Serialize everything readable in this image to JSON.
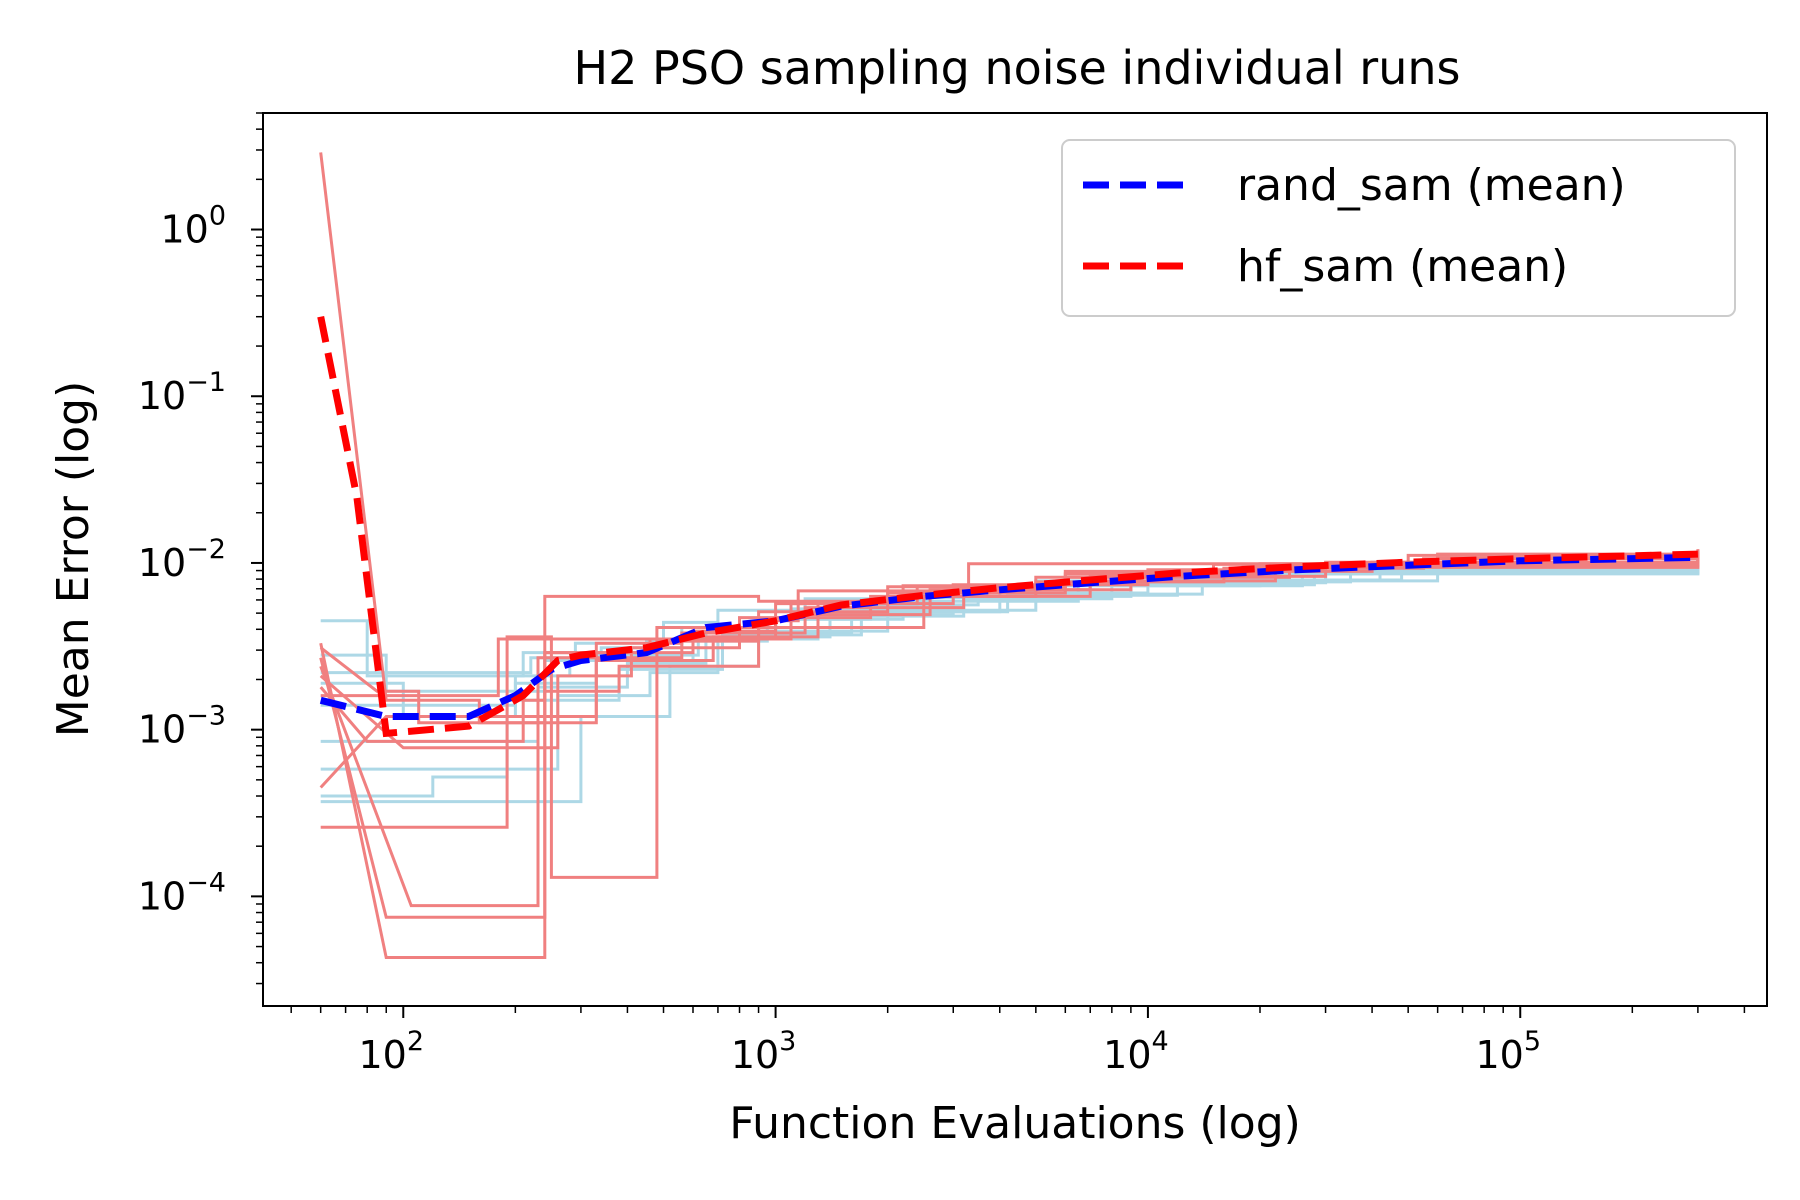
{
  "chart_data": {
    "type": "line",
    "title": "H2 PSO sampling noise individual runs",
    "xlabel": "Function Evaluations (log)",
    "ylabel": "Mean Error (log)",
    "xscale": "log",
    "yscale": "log",
    "xlim": [
      42,
      460000
    ],
    "ylim": [
      2.2e-05,
      5.0
    ],
    "x_ticks": [
      {
        "value": 100,
        "base": "10",
        "exp": "2"
      },
      {
        "value": 1000,
        "base": "10",
        "exp": "3"
      },
      {
        "value": 10000,
        "base": "10",
        "exp": "4"
      },
      {
        "value": 100000,
        "base": "10",
        "exp": "5"
      }
    ],
    "y_ticks": [
      {
        "value": 1,
        "base": "10",
        "exp": "0"
      },
      {
        "value": 0.1,
        "base": "10",
        "exp": "−1"
      },
      {
        "value": 0.01,
        "base": "10",
        "exp": "−2"
      },
      {
        "value": 0.001,
        "base": "10",
        "exp": "−3"
      },
      {
        "value": 0.0001,
        "base": "10",
        "exp": "−4"
      }
    ],
    "legend": {
      "position": "top-right",
      "entries": [
        {
          "label": "rand_sam (mean)",
          "color": "#0000ff"
        },
        {
          "label": "hf_sam (mean)",
          "color": "#ff0000"
        }
      ]
    },
    "colors": {
      "rand_runs": "#add8e6",
      "hf_runs": "#f08080",
      "rand_mean": "#0000ff",
      "hf_mean": "#ff0000"
    },
    "rand_runs": [
      {
        "x": [
          60,
          80,
          160,
          210,
          290,
          500,
          700,
          1200,
          2500,
          5000,
          12000,
          40000,
          300000
        ],
        "y": [
          0.0045,
          0.0021,
          0.0021,
          0.0029,
          0.0033,
          0.0044,
          0.0052,
          0.0061,
          0.0067,
          0.0078,
          0.0086,
          0.0096,
          0.0108
        ]
      },
      {
        "x": [
          60,
          150,
          200,
          280,
          600,
          1000,
          1800,
          3500,
          9000,
          30000,
          300000
        ],
        "y": [
          0.0014,
          0.0014,
          0.0021,
          0.0026,
          0.0036,
          0.0046,
          0.0056,
          0.0066,
          0.0076,
          0.0089,
          0.0102
        ]
      },
      {
        "x": [
          60,
          180,
          230,
          400,
          650,
          1600,
          4000,
          10000,
          42000,
          300000
        ],
        "y": [
          0.00085,
          0.00085,
          0.0018,
          0.0025,
          0.0038,
          0.0051,
          0.0066,
          0.0079,
          0.0093,
          0.0103
        ]
      },
      {
        "x": [
          60,
          140,
          220,
          340,
          560,
          1100,
          2400,
          6000,
          20000,
          300000
        ],
        "y": [
          0.0022,
          0.0022,
          0.0027,
          0.0031,
          0.0041,
          0.0053,
          0.0062,
          0.0073,
          0.0086,
          0.0106
        ]
      },
      {
        "x": [
          60,
          160,
          260,
          460,
          700,
          1400,
          3200,
          8000,
          26000,
          300000
        ],
        "y": [
          0.00058,
          0.00058,
          0.0016,
          0.0022,
          0.0036,
          0.0048,
          0.0061,
          0.0073,
          0.0087,
          0.0104
        ]
      },
      {
        "x": [
          60,
          200,
          300,
          520,
          900,
          2000,
          5000,
          14000,
          48000,
          300000
        ],
        "y": [
          0.00037,
          0.00037,
          0.0012,
          0.0024,
          0.0039,
          0.0052,
          0.0065,
          0.0079,
          0.0094,
          0.0107
        ]
      },
      {
        "x": [
          60,
          100,
          200,
          330,
          620,
          1300,
          3000,
          9000,
          35000,
          300000
        ],
        "y": [
          0.0019,
          0.0012,
          0.0019,
          0.0028,
          0.0035,
          0.0049,
          0.0063,
          0.0077,
          0.0091,
          0.0101
        ]
      },
      {
        "x": [
          60,
          90,
          170,
          240,
          450,
          950,
          2200,
          6500,
          28000,
          300000
        ],
        "y": [
          0.0028,
          0.0017,
          0.0017,
          0.0026,
          0.0034,
          0.0046,
          0.0059,
          0.0074,
          0.0088,
          0.0105
        ]
      },
      {
        "x": [
          60,
          120,
          190,
          380,
          720,
          1700,
          4200,
          12000,
          60000,
          300000
        ],
        "y": [
          0.0004,
          0.00052,
          0.0015,
          0.0023,
          0.0037,
          0.0051,
          0.0064,
          0.0078,
          0.0095,
          0.0104
        ]
      }
    ],
    "hf_runs": [
      {
        "x": [
          60,
          90,
          120,
          160,
          240,
          600,
          1000,
          2000,
          5000,
          10000,
          30000,
          60000,
          300000
        ],
        "y": [
          2.9,
          0.0015,
          0.0015,
          0.0011,
          0.0029,
          0.0039,
          0.0057,
          0.0072,
          0.0082,
          0.0091,
          0.0101,
          0.0113,
          0.0121
        ]
      },
      {
        "x": [
          60,
          90,
          210,
          240,
          460,
          1100,
          2600,
          7000,
          18000,
          60000,
          300000
        ],
        "y": [
          0.0033,
          4.3e-05,
          4.3e-05,
          0.0029,
          0.0035,
          0.0049,
          0.0069,
          0.0083,
          0.0095,
          0.0107,
          0.0117
        ]
      },
      {
        "x": [
          60,
          90,
          210,
          240,
          400,
          900,
          2200,
          6000,
          20000,
          300000
        ],
        "y": [
          0.0027,
          7.5e-05,
          7.5e-05,
          0.0063,
          0.0063,
          0.0059,
          0.0073,
          0.0086,
          0.0099,
          0.0113
        ]
      },
      {
        "x": [
          60,
          105,
          180,
          230,
          560,
          1200,
          3200,
          9000,
          30000,
          300000
        ],
        "y": [
          0.0024,
          8.8e-05,
          8.8e-05,
          0.0027,
          0.0038,
          0.0054,
          0.0069,
          0.0083,
          0.0099,
          0.0115
        ]
      },
      {
        "x": [
          60,
          150,
          190,
          250,
          300,
          480,
          900,
          2000,
          6000,
          24000,
          300000
        ],
        "y": [
          0.00026,
          0.00026,
          0.0036,
          0.00013,
          0.00013,
          0.0034,
          0.0051,
          0.0066,
          0.0082,
          0.0096,
          0.0118
        ]
      },
      {
        "x": [
          60,
          90,
          210,
          330,
          560,
          1300,
          3000,
          10000,
          40000,
          300000
        ],
        "y": [
          0.00045,
          0.0012,
          0.0012,
          0.0033,
          0.0036,
          0.0057,
          0.0074,
          0.0089,
          0.0101,
          0.0112
        ]
      },
      {
        "x": [
          60,
          80,
          170,
          210,
          240,
          380,
          900,
          2500,
          7000,
          22000,
          300000
        ],
        "y": [
          0.0018,
          0.00085,
          0.00085,
          0.0015,
          0.0017,
          0.0024,
          0.0041,
          0.0063,
          0.0078,
          0.0094,
          0.0114
        ]
      },
      {
        "x": [
          60,
          90,
          180,
          250,
          480,
          1100,
          2400,
          6000,
          15000,
          50000,
          300000
        ],
        "y": [
          0.0016,
          0.0016,
          0.0035,
          0.0035,
          0.0041,
          0.0057,
          0.0072,
          0.0089,
          0.0098,
          0.0111,
          0.0119
        ]
      },
      {
        "x": [
          60,
          85,
          110,
          200,
          330,
          680,
          1000,
          1150,
          3300,
          9500,
          300000
        ],
        "y": [
          0.0031,
          0.0017,
          0.0011,
          0.0011,
          0.0026,
          0.0036,
          0.0045,
          0.0068,
          0.0099,
          0.0099,
          0.0116
        ]
      },
      {
        "x": [
          60,
          100,
          190,
          260,
          410,
          800,
          1800,
          5000,
          16000,
          55000,
          300000
        ],
        "y": [
          0.0021,
          0.00078,
          0.00078,
          0.0021,
          0.0031,
          0.0047,
          0.0063,
          0.0077,
          0.0093,
          0.0106,
          0.0113
        ]
      }
    ],
    "rand_mean": {
      "x": [
        60,
        90,
        150,
        200,
        250,
        300,
        450,
        650,
        1000,
        1500,
        2500,
        4000,
        7000,
        12000,
        25000,
        50000,
        100000,
        300000
      ],
      "y": [
        0.0015,
        0.0012,
        0.0012,
        0.0016,
        0.0023,
        0.0026,
        0.0029,
        0.0041,
        0.0045,
        0.0055,
        0.0063,
        0.0069,
        0.0076,
        0.0083,
        0.0091,
        0.0097,
        0.0103,
        0.0108
      ]
    },
    "hf_mean": {
      "x": [
        60,
        75,
        90,
        150,
        210,
        260,
        300,
        450,
        650,
        1000,
        1500,
        2500,
        4000,
        7000,
        12000,
        25000,
        50000,
        100000,
        300000
      ],
      "y": [
        0.3,
        0.025,
        0.00095,
        0.00105,
        0.0016,
        0.0026,
        0.0028,
        0.0031,
        0.0038,
        0.0045,
        0.0056,
        0.0064,
        0.0071,
        0.0079,
        0.0087,
        0.0095,
        0.0101,
        0.0106,
        0.0113
      ]
    }
  }
}
